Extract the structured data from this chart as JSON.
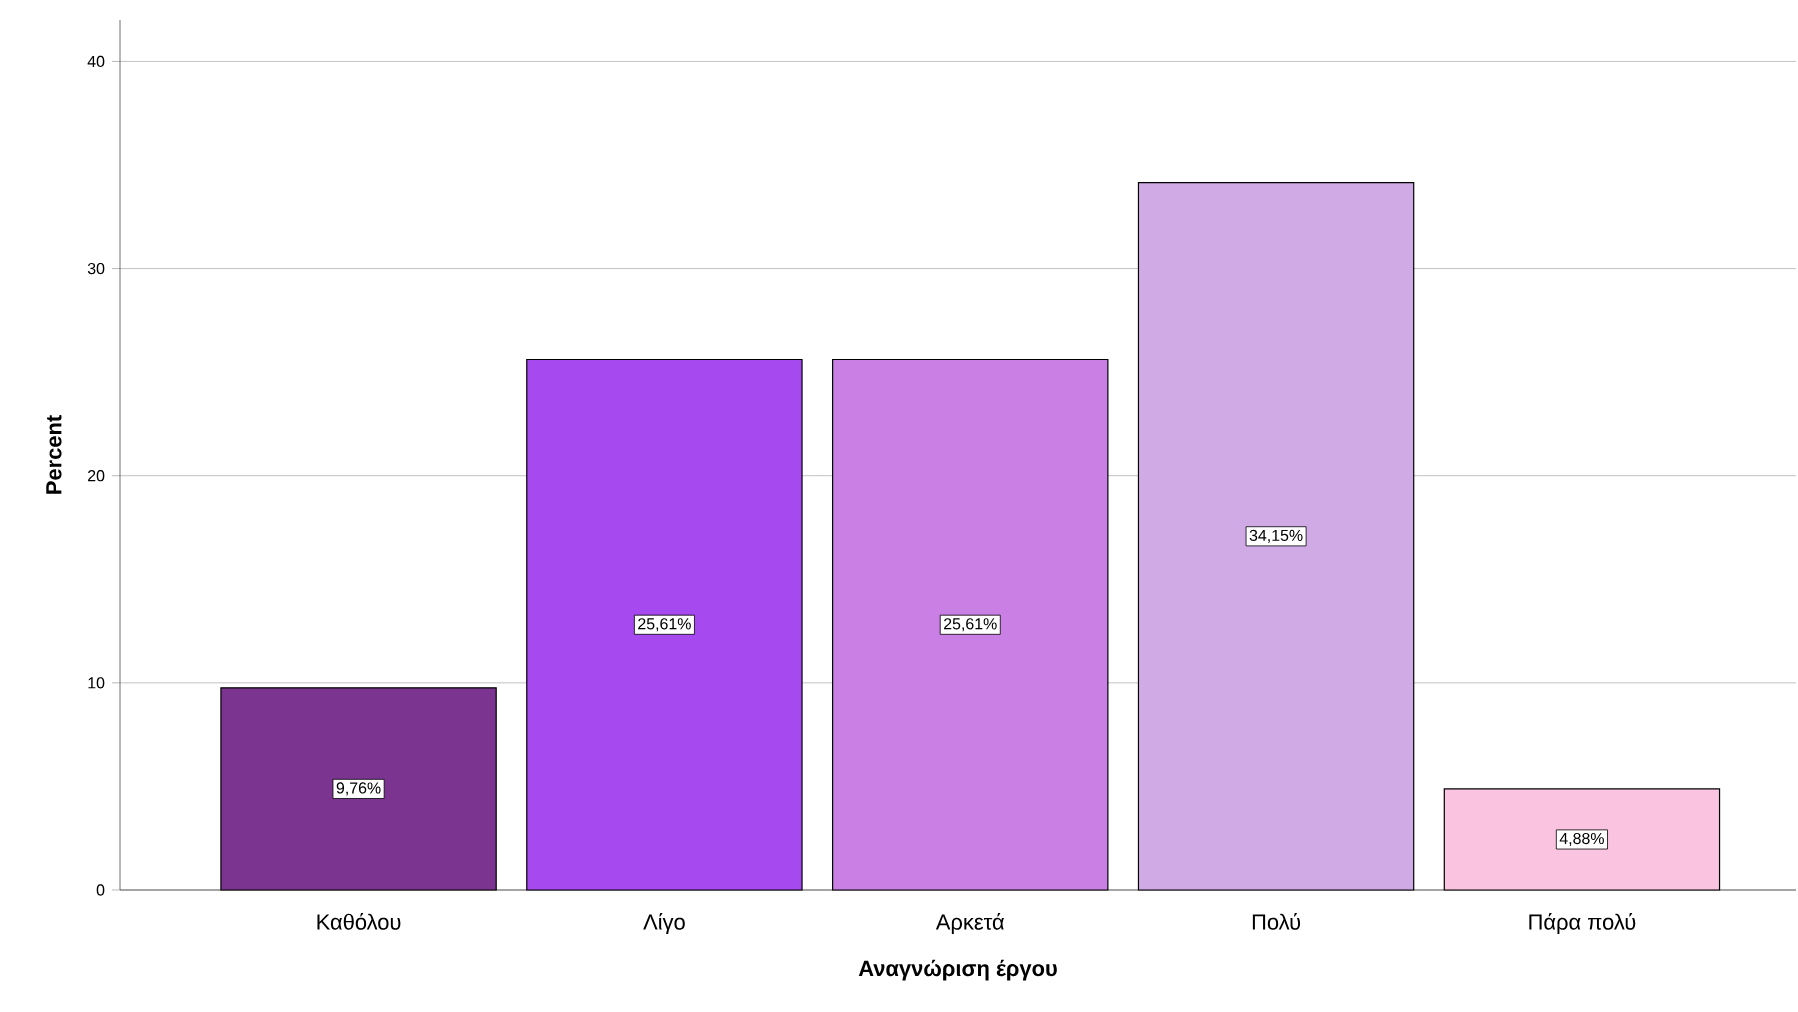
{
  "chart_data": {
    "type": "bar",
    "xlabel": "Αναγνώριση έργου",
    "ylabel": "Percent",
    "categories": [
      "Καθόλου",
      "Λίγο",
      "Αρκετά",
      "Πολύ",
      "Πάρα πολύ"
    ],
    "values": [
      9.76,
      25.61,
      25.61,
      34.15,
      4.88
    ],
    "value_labels": [
      "9,76%",
      "25,61%",
      "25,61%",
      "34,15%",
      "4,88%"
    ],
    "colors": [
      "#7b3590",
      "#a64af0",
      "#c97fe3",
      "#d0aae4",
      "#fac3e0"
    ],
    "ylim": [
      0,
      42
    ],
    "yticks": [
      0,
      10,
      20,
      30,
      40
    ],
    "grid": "y"
  }
}
